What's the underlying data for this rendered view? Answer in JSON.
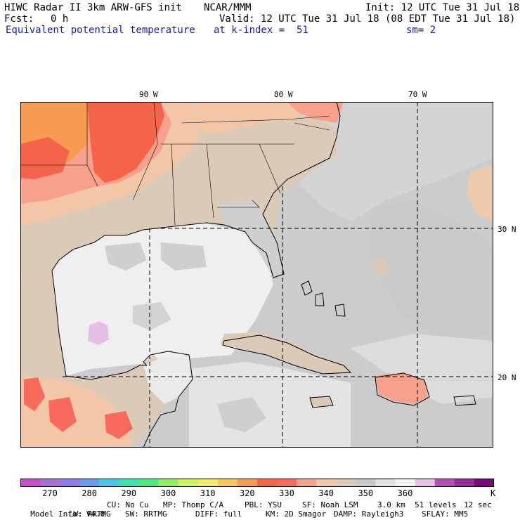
{
  "header": {
    "title": "HIWC Radar II 3km ARW-GFS init",
    "org": "NCAR/MMM",
    "init": "Init: 12 UTC Tue 31 Jul 18",
    "fcst_label": "Fcst:",
    "fcst_value": "0 h",
    "valid": "Valid: 12 UTC Tue 31 Jul 18 (08 EDT Tue 31 Jul 18)",
    "field": "Equivalent potential temperature",
    "level": "at k-index =  51",
    "smooth": "sm= 2"
  },
  "map": {
    "lon_labels": [
      "90 W",
      "80 W",
      "70 W"
    ],
    "lat_labels": [
      "30 N",
      "20 N"
    ]
  },
  "colorbar": {
    "colors": [
      "#c84fc8",
      "#a86ed0",
      "#8c7be8",
      "#6a9bf0",
      "#4ec6e6",
      "#3ee2b0",
      "#52e880",
      "#8ef060",
      "#cdf262",
      "#f0ea70",
      "#f8c460",
      "#f79a52",
      "#f4644a",
      "#f86a5c",
      "#f7a08c",
      "#f3c6a8",
      "#dccab8",
      "#c8c8c8",
      "#e0e0e0",
      "#f2f2f2",
      "#e6bfe6",
      "#b44cb4",
      "#962c96",
      "#780a78"
    ],
    "tick_labels": [
      "270",
      "280",
      "290",
      "300",
      "310",
      "320",
      "330",
      "340",
      "350",
      "360"
    ],
    "unit": "K"
  },
  "footer": {
    "line1": [
      "Model Info: V4.0",
      "CU: No Cu",
      "MP: Thomp C/A",
      "PBL: YSU",
      "SF: Noah LSM",
      "3.0 km",
      "51 levels",
      "12 sec"
    ],
    "line2": [
      "LW: RRTMG",
      "SW: RRTMG",
      "DIFF: full",
      "KM: 2D Smagor",
      "DAMP: Rayleigh3",
      "SFLAY: MM5"
    ]
  }
}
